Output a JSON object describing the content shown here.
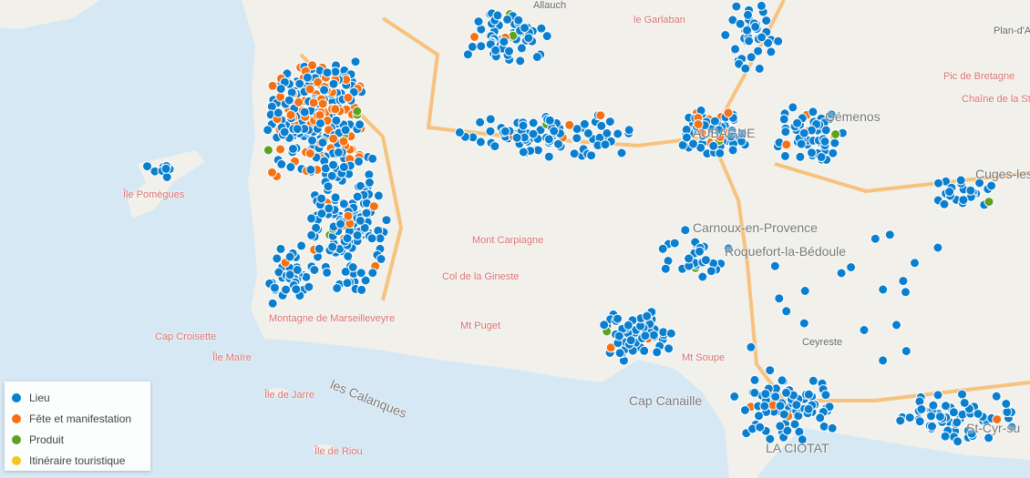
{
  "map": {
    "colors": {
      "sea": "#d6e8f3",
      "land": "#f1f0eb",
      "road": "#f7c27e",
      "lieu": "#0a7fcf",
      "fete": "#f47214",
      "produit": "#5da11e",
      "itineraire": "#f5c518"
    },
    "labels": [
      {
        "text": "Allauch",
        "style": "plain"
      },
      {
        "text": "le Garlaban",
        "style": "red"
      },
      {
        "text": "Plan-d'A",
        "style": "plain"
      },
      {
        "text": "Pic de Bretagne",
        "style": "red"
      },
      {
        "text": "Chaîne de la Ste-B",
        "style": "red"
      },
      {
        "text": "Gémenos",
        "style": "big"
      },
      {
        "text": "AUBAGNE",
        "style": "big"
      },
      {
        "text": "Cuges-les-P",
        "style": "big"
      },
      {
        "text": "Carnoux-en-Provence",
        "style": "big"
      },
      {
        "text": "Roquefort-la-Bédoule",
        "style": "big"
      },
      {
        "text": "Île Pomègues",
        "style": "red"
      },
      {
        "text": "Mont Carpiagne",
        "style": "red"
      },
      {
        "text": "Col de la Gineste",
        "style": "red"
      },
      {
        "text": "Mt Puget",
        "style": "red"
      },
      {
        "text": "Montagne de Marseilleveyre",
        "style": "red"
      },
      {
        "text": "Cap Croisette",
        "style": "red"
      },
      {
        "text": "Île Maïre",
        "style": "red"
      },
      {
        "text": "Île de Jarre",
        "style": "red"
      },
      {
        "text": "les Calanques",
        "style": "big"
      },
      {
        "text": "Île de Riou",
        "style": "red"
      },
      {
        "text": "Cap Canaille",
        "style": "bigred"
      },
      {
        "text": "Mt Soupe",
        "style": "red"
      },
      {
        "text": "Ceyreste",
        "style": "plain"
      },
      {
        "text": "LA CIOTAT",
        "style": "big"
      },
      {
        "text": "St-Cyr-su",
        "style": "big"
      }
    ]
  },
  "legend": {
    "items": [
      {
        "label": "Lieu",
        "color": "#0a7fcf"
      },
      {
        "label": "Fête et manifestation",
        "color": "#f47214"
      },
      {
        "label": "Produit",
        "color": "#5da11e"
      },
      {
        "label": "Itinéraire touristique",
        "color": "#f5c518"
      }
    ]
  }
}
